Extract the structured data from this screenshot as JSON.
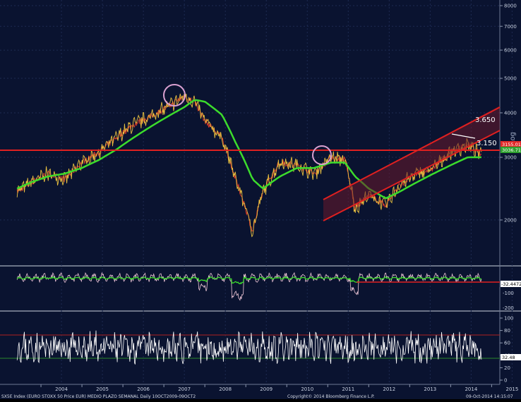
{
  "chart_data": [
    {
      "type": "line",
      "title": "SX5E Index (EURO STOXX 50 Price EUR)",
      "scale": "log",
      "ylim": [
        1500,
        8000
      ],
      "yticks": [
        2000,
        3000,
        4000,
        5000,
        6000,
        7000,
        8000
      ],
      "ylabel": "Log",
      "x": [
        "2003-06",
        "2003-10",
        "2004-03",
        "2004-08",
        "2005-01",
        "2005-06",
        "2005-11",
        "2006-04",
        "2006-09",
        "2007-02",
        "2007-07",
        "2007-10",
        "2008-01",
        "2008-06",
        "2008-10",
        "2009-03",
        "2009-06",
        "2009-11",
        "2010-04",
        "2010-09",
        "2011-02",
        "2011-06",
        "2011-09",
        "2012-01",
        "2012-06",
        "2012-10",
        "2013-03",
        "2013-08",
        "2014-01",
        "2014-06",
        "2014-10"
      ],
      "series": [
        {
          "color": "#e8c040",
          "values": [
            2400,
            2550,
            2700,
            2600,
            2900,
            3100,
            3400,
            3700,
            3900,
            4150,
            4450,
            4300,
            3800,
            3400,
            2600,
            1850,
            2400,
            2900,
            2850,
            2700,
            3000,
            2950,
            2150,
            2350,
            2200,
            2500,
            2700,
            2800,
            3100,
            3250,
            3050
          ]
        },
        {
          "color": "#3cdc2c",
          "values": [
            2450,
            2550,
            2650,
            2700,
            2800,
            2950,
            3150,
            3400,
            3650,
            3900,
            4150,
            4350,
            4300,
            3950,
            3300,
            2600,
            2450,
            2650,
            2800,
            2800,
            2900,
            2900,
            2650,
            2450,
            2300,
            2400,
            2550,
            2700,
            2850,
            3000,
            3000
          ]
        }
      ],
      "annotations": [
        "3.650",
        "3.150"
      ],
      "last_values": [
        {
          "label": "3155.01",
          "color": "#e23030"
        },
        {
          "label": "3036.71",
          "color": "#30b030"
        }
      ]
    },
    {
      "type": "line",
      "ylim": [
        -200,
        60
      ],
      "yticks": [
        -200,
        -100,
        -32.4472
      ],
      "last_value": "-32.4472"
    },
    {
      "type": "line",
      "ylim": [
        10,
        100
      ],
      "yticks": [
        0,
        20,
        40,
        60,
        80,
        100
      ],
      "last_value": "32.48",
      "reference_lines": [
        70,
        30
      ]
    }
  ],
  "x_axis": {
    "labels": [
      "2004",
      "2005",
      "2006",
      "2007",
      "2008",
      "2009",
      "2010",
      "2011",
      "2012",
      "2013",
      "2014",
      "2015"
    ]
  },
  "footer": {
    "left": "SX5E Index (EURO STOXX 50 Price EUR) MEDIO PLAZO SEMANAL  Daily 10OCT2009-09OCT2",
    "center": "Copyright© 2014 Bloomberg Finance L.P.",
    "right": "09-Oct-2014 14:15:07"
  },
  "colors": {
    "background": "#0a1330",
    "price": "#e8c040",
    "ma": "#3cdc2c",
    "trend": "#e02020",
    "circle": "#d9a0d0"
  }
}
